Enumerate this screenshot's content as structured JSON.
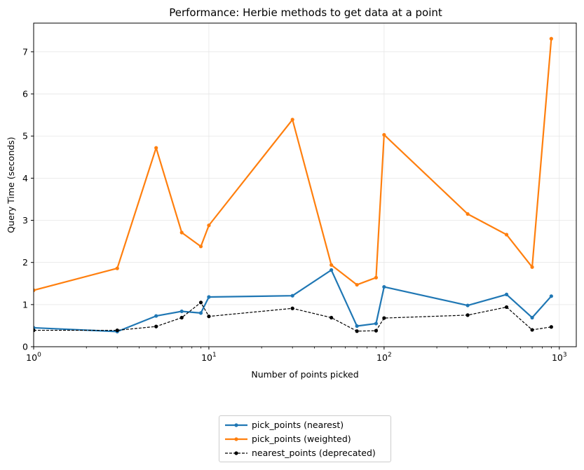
{
  "chart_data": {
    "type": "line",
    "title": "Performance: Herbie methods to get data at a point",
    "xlabel": "Number of points picked",
    "ylabel": "Query Time (seconds)",
    "xscale": "log",
    "xlim": [
      1,
      1250
    ],
    "ylim": [
      0,
      7.68
    ],
    "grid": true,
    "legend_position": "below",
    "x_ticks": [
      {
        "value": 1,
        "base": "10",
        "exp": "0"
      },
      {
        "value": 10,
        "base": "10",
        "exp": "1"
      },
      {
        "value": 100,
        "base": "10",
        "exp": "2"
      },
      {
        "value": 1000,
        "base": "10",
        "exp": "3"
      }
    ],
    "y_ticks": [
      "0",
      "1",
      "2",
      "3",
      "4",
      "5",
      "6",
      "7"
    ],
    "series": [
      {
        "name": "pick_points (nearest)",
        "color": "#1f77b4",
        "style": "solid",
        "x": [
          1,
          3,
          5,
          7,
          9,
          10,
          30,
          50,
          70,
          90,
          100,
          300,
          500,
          700,
          900
        ],
        "y": [
          0.45,
          0.36,
          0.73,
          0.84,
          0.8,
          1.18,
          1.21,
          1.82,
          0.49,
          0.55,
          1.42,
          0.98,
          1.24,
          0.69,
          1.2
        ]
      },
      {
        "name": "pick_points (weighted)",
        "color": "#ff7f0e",
        "style": "solid",
        "x": [
          1,
          3,
          5,
          7,
          9,
          10,
          30,
          50,
          70,
          90,
          100,
          300,
          500,
          700,
          900
        ],
        "y": [
          1.34,
          1.86,
          4.72,
          2.71,
          2.38,
          2.88,
          5.39,
          1.94,
          1.47,
          1.64,
          5.03,
          3.15,
          2.66,
          1.89,
          7.31
        ]
      },
      {
        "name": "nearest_points (deprecated)",
        "color": "#000000",
        "style": "dashed",
        "x": [
          1,
          3,
          5,
          7,
          9,
          10,
          30,
          50,
          70,
          90,
          100,
          300,
          500,
          700,
          900
        ],
        "y": [
          0.39,
          0.39,
          0.48,
          0.69,
          1.05,
          0.72,
          0.91,
          0.69,
          0.37,
          0.38,
          0.68,
          0.75,
          0.94,
          0.4,
          0.47
        ]
      }
    ]
  }
}
